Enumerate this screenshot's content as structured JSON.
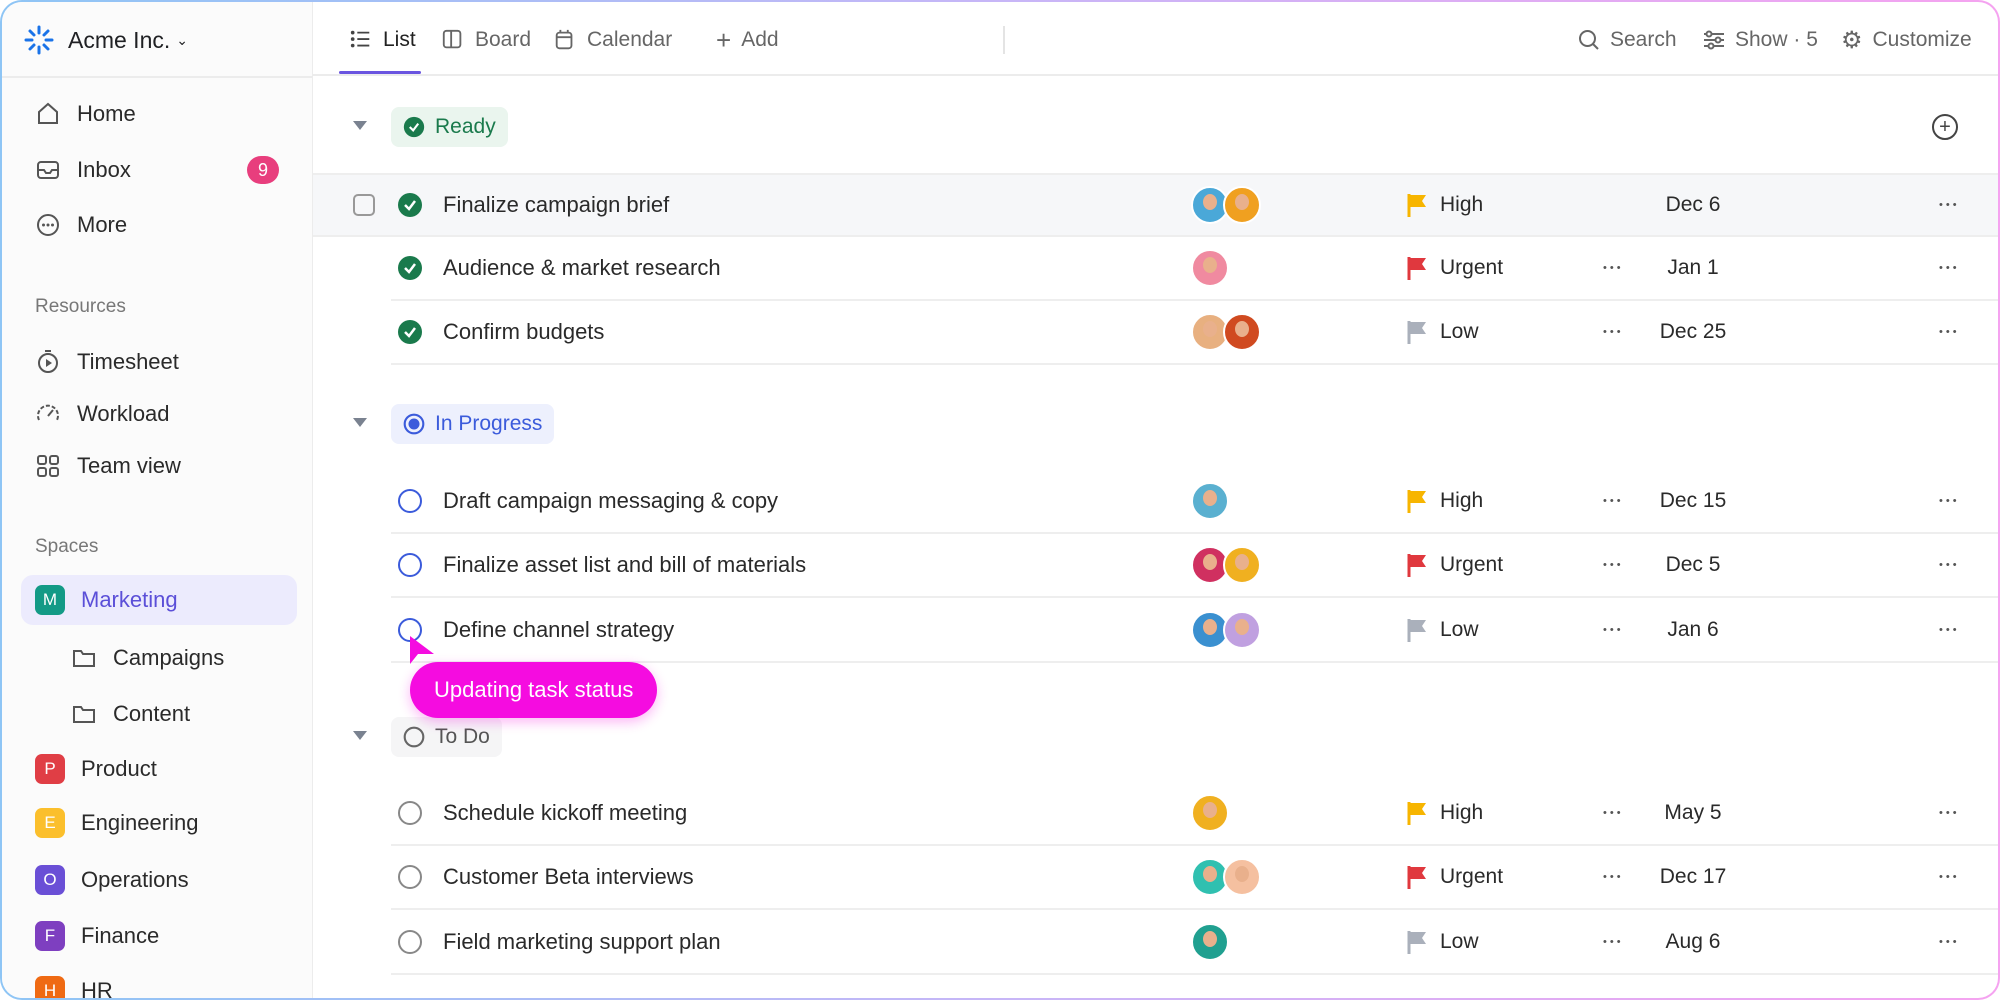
{
  "workspace": {
    "name": "Acme Inc."
  },
  "sidebar": {
    "nav": [
      {
        "label": "Home",
        "icon": "home-icon"
      },
      {
        "label": "Inbox",
        "icon": "inbox-icon",
        "badge": "9"
      },
      {
        "label": "More",
        "icon": "more-icon"
      }
    ],
    "resources_heading": "Resources",
    "resources": [
      {
        "label": "Timesheet",
        "icon": "timer-icon"
      },
      {
        "label": "Workload",
        "icon": "gauge-icon"
      },
      {
        "label": "Team view",
        "icon": "grid-icon"
      }
    ],
    "spaces_heading": "Spaces",
    "spaces": [
      {
        "label": "Marketing",
        "letter": "M",
        "color": "#139a86",
        "active": true
      },
      {
        "label": "Campaigns",
        "folder": true
      },
      {
        "label": "Content",
        "folder": true
      },
      {
        "label": "Product",
        "letter": "P",
        "color": "#e03e45"
      },
      {
        "label": "Engineering",
        "letter": "E",
        "color": "#fbbf2c"
      },
      {
        "label": "Operations",
        "letter": "O",
        "color": "#6a4fd6"
      },
      {
        "label": "Finance",
        "letter": "F",
        "color": "#7e3fc0"
      },
      {
        "label": "HR",
        "letter": "H",
        "color": "#ef6a13"
      }
    ]
  },
  "toolbar": {
    "tabs": [
      {
        "label": "List",
        "icon": "list-icon"
      },
      {
        "label": "Board",
        "icon": "board-icon"
      },
      {
        "label": "Calendar",
        "icon": "calendar-icon"
      }
    ],
    "add_label": "Add",
    "search_label": "Search",
    "show_label": "Show · 5",
    "customize_label": "Customize"
  },
  "groups": [
    {
      "label": "Ready",
      "status": "done",
      "color": "#1a7a4c",
      "bg": "#eaf5ee",
      "tasks": [
        {
          "name": "Finalize campaign brief",
          "assignees": [
            "#4aa8d8",
            "#f0a020"
          ],
          "priority": "High",
          "flag": "#f7b500",
          "date": "Dec 6"
        },
        {
          "name": "Audience & market research",
          "assignees": [
            "#f08aa0"
          ],
          "priority": "Urgent",
          "flag": "#e0383e",
          "date": "Jan 1"
        },
        {
          "name": "Confirm budgets",
          "assignees": [
            "#e8b080",
            "#d04a20"
          ],
          "priority": "Low",
          "flag": "#aab0bb",
          "date": "Dec 25"
        }
      ]
    },
    {
      "label": "In Progress",
      "status": "progress",
      "color": "#3b5bdb",
      "bg": "#edf0fd",
      "tasks": [
        {
          "name": "Draft campaign messaging & copy",
          "assignees": [
            "#5ab0d0"
          ],
          "priority": "High",
          "flag": "#f7b500",
          "date": "Dec 15"
        },
        {
          "name": "Finalize asset list and bill of materials",
          "assignees": [
            "#d03060",
            "#f0b020"
          ],
          "priority": "Urgent",
          "flag": "#e0383e",
          "date": "Dec 5"
        },
        {
          "name": "Define channel strategy",
          "assignees": [
            "#3a90d0",
            "#c0a0e0"
          ],
          "priority": "Low",
          "flag": "#aab0bb",
          "date": "Jan 6"
        }
      ]
    },
    {
      "label": "To Do",
      "status": "todo",
      "color": "#555",
      "bg": "#f5f5f6",
      "tasks": [
        {
          "name": "Schedule kickoff meeting",
          "assignees": [
            "#f0b020"
          ],
          "priority": "High",
          "flag": "#f7b500",
          "date": "May 5"
        },
        {
          "name": "Customer Beta interviews",
          "assignees": [
            "#30c0b0",
            "#f5c0a0"
          ],
          "priority": "Urgent",
          "flag": "#e0383e",
          "date": "Dec 17"
        },
        {
          "name": "Field marketing support plan",
          "assignees": [
            "#20a090"
          ],
          "priority": "Low",
          "flag": "#aab0bb",
          "date": "Aug 6"
        }
      ]
    }
  ],
  "tooltip": "Updating task status"
}
